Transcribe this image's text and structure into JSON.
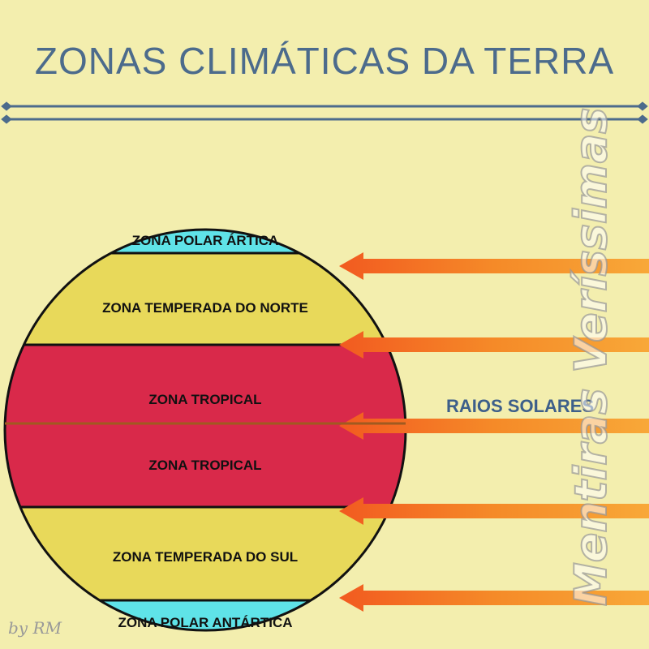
{
  "title": "ZONAS CLIMÁTICAS DA TERRA",
  "zones": [
    {
      "label": "ZONA POLAR ÁRTICA",
      "color": "#5fe3e8"
    },
    {
      "label": "ZONA TEMPERADA DO NORTE",
      "color": "#e8d95a"
    },
    {
      "label": "ZONA TROPICAL",
      "color": "#d9294a"
    },
    {
      "label": "ZONA TROPICAL",
      "color": "#d9294a"
    },
    {
      "label": "ZONA TEMPERADA DO SUL",
      "color": "#e8d95a"
    },
    {
      "label": "ZONA POLAR ANTÁRTICA",
      "color": "#5fe3e8"
    }
  ],
  "rays_label": "RAIOS SOLARES",
  "ray_color": "#f26a22",
  "watermark": "Mentiras Veríssimas",
  "signature": "by RM"
}
